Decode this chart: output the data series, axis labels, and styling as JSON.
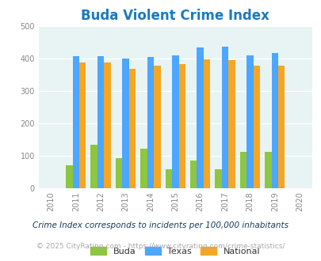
{
  "title": "Buda Violent Crime Index",
  "years": [
    2011,
    2012,
    2013,
    2014,
    2015,
    2016,
    2017,
    2018,
    2019
  ],
  "buda": [
    70,
    133,
    93,
    122,
    57,
    85,
    58,
    112,
    112
  ],
  "texas": [
    408,
    408,
    400,
    405,
    410,
    434,
    437,
    410,
    416
  ],
  "national": [
    387,
    387,
    367,
    377,
    383,
    397,
    394,
    379,
    379
  ],
  "bar_colors": {
    "buda": "#8dc63f",
    "texas": "#4da6ff",
    "national": "#f5a623"
  },
  "xlim": [
    2009.5,
    2020.5
  ],
  "ylim": [
    0,
    500
  ],
  "yticks": [
    0,
    100,
    200,
    300,
    400,
    500
  ],
  "xticks": [
    2010,
    2011,
    2012,
    2013,
    2014,
    2015,
    2016,
    2017,
    2018,
    2019,
    2020
  ],
  "background_color": "#e8f4f4",
  "title_color": "#1a7abf",
  "title_fontsize": 12,
  "legend_labels": [
    "Buda",
    "Texas",
    "National"
  ],
  "footnote1": "Crime Index corresponds to incidents per 100,000 inhabitants",
  "footnote2": "© 2025 CityRating.com - https://www.cityrating.com/crime-statistics/",
  "bar_width": 0.27
}
